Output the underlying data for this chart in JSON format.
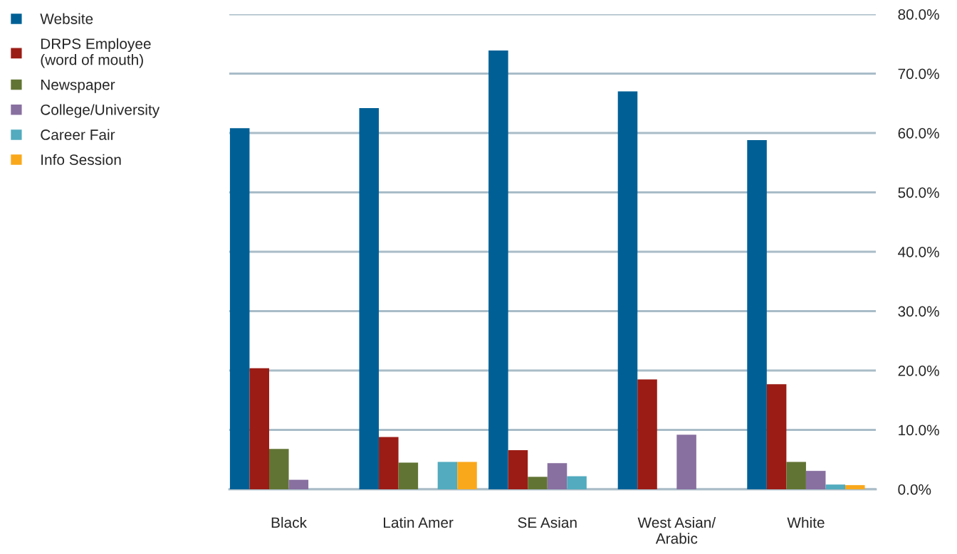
{
  "chart_data": {
    "type": "bar",
    "categories": [
      "Black",
      "Latin Amer",
      "SE Asian",
      "West Asian/\nArabic",
      "White"
    ],
    "series": [
      {
        "name": "Website",
        "color": "#006096",
        "values": [
          60.8,
          64.2,
          73.9,
          67.0,
          58.8
        ]
      },
      {
        "name": "DRPS Employee\n(word of mouth)",
        "color": "#9b1c15",
        "values": [
          20.4,
          8.8,
          6.6,
          18.5,
          17.7
        ]
      },
      {
        "name": "Newspaper",
        "color": "#627434",
        "values": [
          6.8,
          4.5,
          2.1,
          0,
          4.6
        ]
      },
      {
        "name": "College/University",
        "color": "#8870a0",
        "values": [
          1.6,
          0,
          4.4,
          9.2,
          3.1
        ]
      },
      {
        "name": "Career Fair",
        "color": "#52abbe",
        "values": [
          0,
          4.6,
          2.2,
          0,
          0.8
        ]
      },
      {
        "name": "Info Session",
        "color": "#f9a81c",
        "values": [
          0,
          4.6,
          0,
          0,
          0.7
        ]
      }
    ],
    "ylim": [
      0,
      80
    ],
    "yticks": [
      {
        "value": 0,
        "label": "0.0%"
      },
      {
        "value": 10,
        "label": "10.0%"
      },
      {
        "value": 20,
        "label": "20.0%"
      },
      {
        "value": 30,
        "label": "30.0%"
      },
      {
        "value": 40,
        "label": "40.0%"
      },
      {
        "value": 50,
        "label": "50.0%"
      },
      {
        "value": 60,
        "label": "60.0%"
      },
      {
        "value": 70,
        "label": "70.0%"
      },
      {
        "value": 80,
        "label": "80.0%"
      }
    ],
    "grid": "y",
    "legend": "top left"
  }
}
